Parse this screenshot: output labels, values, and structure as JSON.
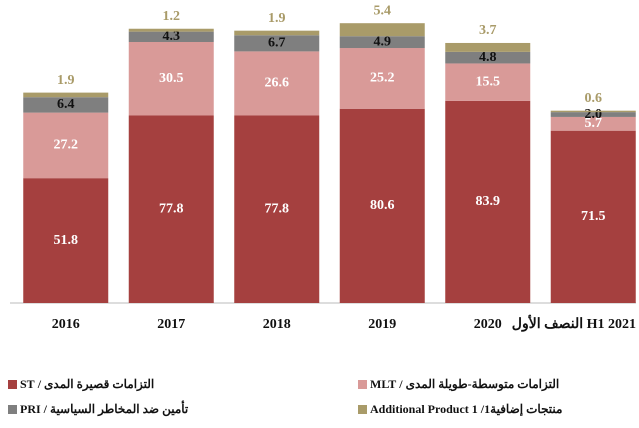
{
  "chart_data": {
    "type": "stacked-bar",
    "categories": [
      "2016",
      "2017",
      "2018",
      "2019",
      "2020",
      "النصف الأول H1 2021"
    ],
    "series": [
      {
        "name": "التزامات قصيرة المدى / ST",
        "color": "#a5403f",
        "values": [
          51.8,
          77.8,
          77.8,
          80.6,
          83.9,
          71.5
        ]
      },
      {
        "name": "التزامات متوسطة-طويلة المدى / MLT",
        "color": "#d99a98",
        "values": [
          27.2,
          30.5,
          26.6,
          25.2,
          15.5,
          5.7
        ]
      },
      {
        "name": "تأمين ضد المخاطر السياسية / PRI",
        "color": "#7f7f7f",
        "values": [
          6.4,
          4.3,
          6.7,
          4.9,
          4.8,
          2.0
        ],
        "value_labels": [
          "6.4",
          "4.3",
          "6.7",
          "4.9",
          "4.8",
          "2.0"
        ]
      },
      {
        "name": "منتجات إضافية1/ Additional Product 1",
        "color": "#a99b69",
        "values": [
          1.9,
          1.2,
          1.9,
          5.4,
          3.7,
          0.6
        ]
      }
    ]
  }
}
